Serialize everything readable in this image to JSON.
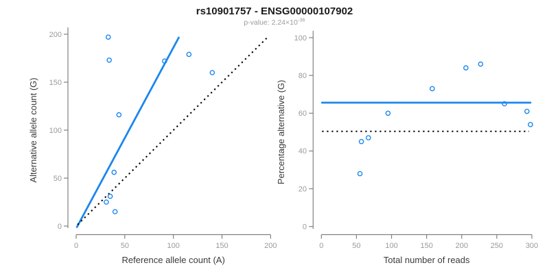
{
  "title": "rs10901757 - ENSG00000107902",
  "subtitle": {
    "prefix": "p-value: 2.24×10",
    "exponent": "-36"
  },
  "colors": {
    "accent_blue": "#1C86EE",
    "line_black": "#000000",
    "axis_gray": "#808080",
    "tick_label_gray": "#999999",
    "axis_title_color": "#3a3a3a"
  },
  "chart_data": [
    {
      "type": "scatter",
      "name": "allele-counts-scatter",
      "xlabel": "Reference allele count (A)",
      "ylabel": "Alternative allele count (G)",
      "xlim": [
        0,
        200
      ],
      "ylim": [
        0,
        200
      ],
      "xticks": [
        0,
        50,
        100,
        150,
        200
      ],
      "yticks": [
        0,
        50,
        100,
        150,
        200
      ],
      "grid": false,
      "legend": null,
      "points": [
        [
          31,
          25
        ],
        [
          33,
          197
        ],
        [
          34,
          173
        ],
        [
          35,
          31
        ],
        [
          39,
          56
        ],
        [
          40,
          15
        ],
        [
          44,
          116
        ],
        [
          91,
          172
        ],
        [
          116,
          179
        ],
        [
          140,
          160
        ]
      ],
      "lines": [
        {
          "name": "fit-line",
          "style": "solid",
          "color": "accent_blue",
          "from": [
            0.8,
            -1
          ],
          "to": [
            105.5,
            196.5
          ]
        },
        {
          "name": "identity-line",
          "style": "dotted",
          "color": "line_black",
          "from": [
            1.5,
            1.5
          ],
          "to": [
            196,
            196
          ]
        }
      ]
    },
    {
      "type": "scatter",
      "name": "percentage-vs-reads-scatter",
      "xlabel": "Total number of reads",
      "ylabel": "Percentage alternative (G)",
      "xlim": [
        0,
        300
      ],
      "ylim": [
        0,
        100
      ],
      "xticks": [
        0,
        50,
        100,
        150,
        200,
        250,
        300
      ],
      "yticks": [
        0,
        20,
        40,
        60,
        80,
        100
      ],
      "grid": false,
      "legend": null,
      "points": [
        [
          55,
          28
        ],
        [
          57,
          45
        ],
        [
          67,
          47
        ],
        [
          95,
          60
        ],
        [
          158,
          73
        ],
        [
          206,
          84
        ],
        [
          227,
          86
        ],
        [
          261,
          65
        ],
        [
          293,
          61
        ],
        [
          298,
          54
        ]
      ],
      "lines": [
        {
          "name": "mean-line",
          "style": "solid",
          "color": "accent_blue",
          "from": [
            1,
            65.6
          ],
          "to": [
            298,
            65.6
          ]
        },
        {
          "name": "reference-line",
          "style": "dotted",
          "color": "line_black",
          "from": [
            1,
            50.4
          ],
          "to": [
            296,
            50.4
          ]
        }
      ]
    }
  ]
}
